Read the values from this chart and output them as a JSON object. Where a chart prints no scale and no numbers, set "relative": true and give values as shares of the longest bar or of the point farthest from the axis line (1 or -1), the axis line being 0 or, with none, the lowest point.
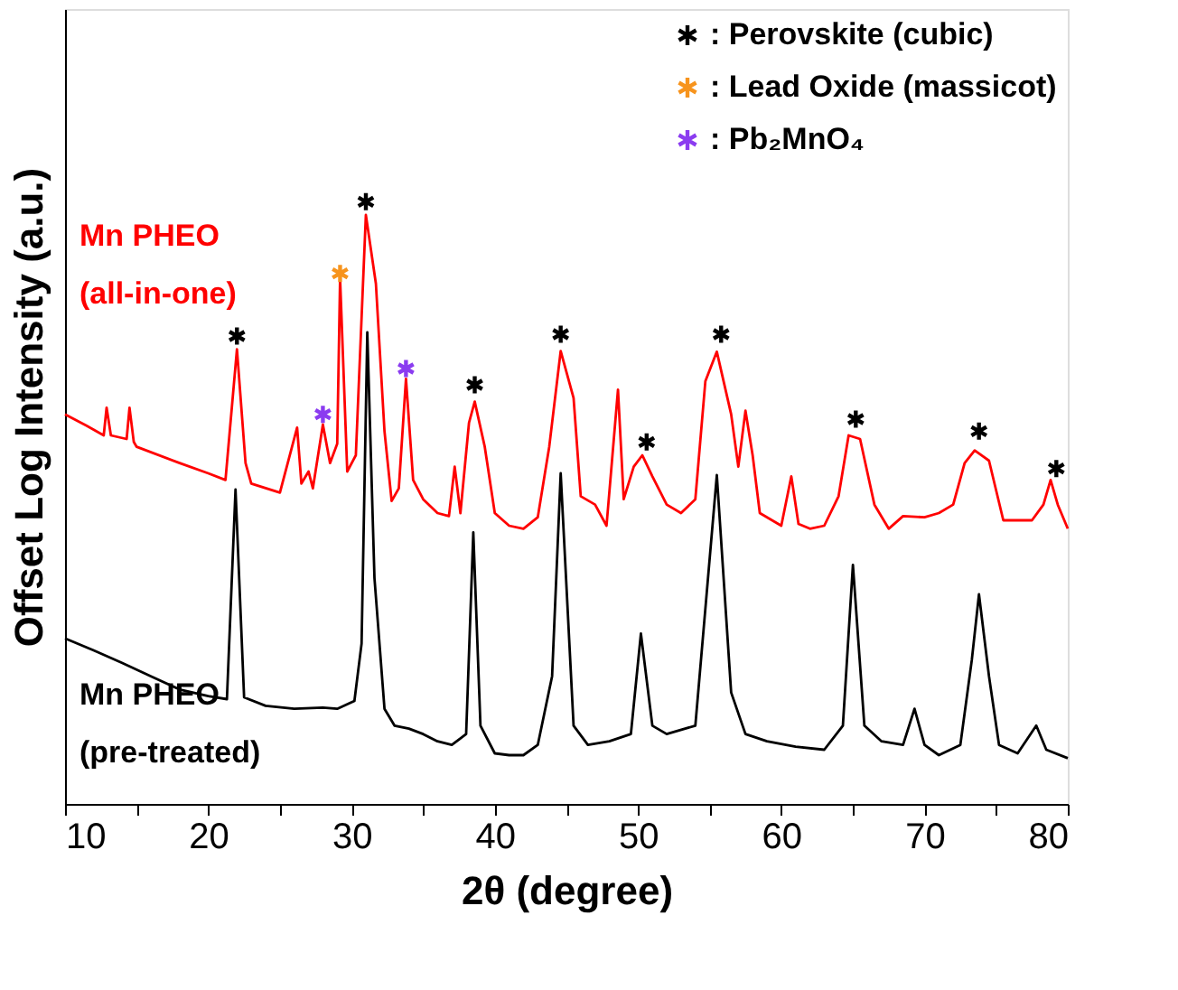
{
  "chart_data": {
    "type": "line",
    "relative": true,
    "xlabel": "2θ (degree)",
    "ylabel": "Offset Log Intensity (a.u.)",
    "xlim": [
      10,
      80
    ],
    "xticks": [
      10,
      {
        "value": 15,
        "label": null
      },
      20,
      {
        "value": 25,
        "label": null
      },
      30,
      {
        "value": 35,
        "label": null
      },
      40,
      {
        "value": 45,
        "label": null
      },
      50,
      {
        "value": 55,
        "label": null
      },
      60,
      {
        "value": 65,
        "label": null
      },
      70,
      {
        "value": 75,
        "label": null
      },
      80
    ],
    "grid": false,
    "legend": "top right",
    "series": [
      {
        "name": "Mn PHEO\n(all-in-one)",
        "color": "#ff0000",
        "x": [
          10,
          11.5,
          12.7,
          12.9,
          13.2,
          14.3,
          14.5,
          14.8,
          15,
          18,
          20,
          21.2,
          22,
          22.6,
          23,
          25,
          26.2,
          26.5,
          27,
          27.3,
          28,
          28.5,
          29,
          29.2,
          29.7,
          30.3,
          31,
          31.7,
          32.3,
          32.8,
          33.3,
          33.8,
          34.3,
          35,
          36,
          36.8,
          37.2,
          37.6,
          38.2,
          38.6,
          39.3,
          40,
          41,
          42,
          43,
          43.8,
          44.6,
          45.5,
          46,
          47,
          47.8,
          48.6,
          49,
          49.7,
          50.3,
          51,
          52,
          53,
          54,
          54.7,
          55.5,
          56.5,
          57,
          57.5,
          58,
          58.5,
          60,
          60.7,
          61.2,
          62,
          63,
          64,
          64.7,
          65.5,
          66.5,
          67.5,
          68.5,
          70,
          71,
          72,
          72.8,
          73.5,
          74.5,
          75.5,
          76.5,
          77.5,
          78.3,
          78.8,
          79.3,
          80
        ],
        "values": [
          0.647,
          0.628,
          0.612,
          0.658,
          0.612,
          0.606,
          0.658,
          0.601,
          0.593,
          0.566,
          0.549,
          0.538,
          0.755,
          0.566,
          0.532,
          0.517,
          0.625,
          0.532,
          0.552,
          0.524,
          0.63,
          0.566,
          0.598,
          0.873,
          0.552,
          0.579,
          0.978,
          0.864,
          0.619,
          0.503,
          0.524,
          0.706,
          0.538,
          0.506,
          0.483,
          0.478,
          0.56,
          0.483,
          0.633,
          0.668,
          0.593,
          0.483,
          0.462,
          0.457,
          0.476,
          0.593,
          0.752,
          0.674,
          0.511,
          0.497,
          0.462,
          0.688,
          0.506,
          0.56,
          0.579,
          0.544,
          0.497,
          0.483,
          0.506,
          0.702,
          0.751,
          0.647,
          0.56,
          0.653,
          0.579,
          0.483,
          0.462,
          0.544,
          0.465,
          0.457,
          0.462,
          0.511,
          0.612,
          0.606,
          0.497,
          0.457,
          0.478,
          0.476,
          0.483,
          0.497,
          0.566,
          0.587,
          0.57,
          0.471,
          0.471,
          0.471,
          0.497,
          0.538,
          0.497,
          0.457
        ]
      },
      {
        "name": "Mn PHEO\n(pre-treated)",
        "color": "#000000",
        "x": [
          10,
          12,
          14,
          16,
          18,
          20,
          21.3,
          21.9,
          22.5,
          24,
          26,
          28,
          29,
          30.2,
          30.7,
          31.1,
          31.6,
          32.3,
          33,
          34,
          35,
          36,
          37,
          38,
          38.5,
          39,
          40,
          41,
          42,
          43,
          44,
          44.6,
          45.5,
          46.5,
          48,
          49.5,
          50.2,
          51,
          52,
          54,
          55.5,
          56.5,
          57.5,
          59,
          61,
          63,
          64.3,
          65,
          65.8,
          67,
          68.5,
          69.3,
          70,
          71,
          72.5,
          73.3,
          73.8,
          74.5,
          75.2,
          76.5,
          77.8,
          78.5,
          80
        ],
        "values": [
          0.275,
          0.255,
          0.234,
          0.212,
          0.19,
          0.179,
          0.174,
          0.522,
          0.177,
          0.163,
          0.158,
          0.16,
          0.158,
          0.171,
          0.266,
          0.783,
          0.375,
          0.158,
          0.13,
          0.125,
          0.116,
          0.104,
          0.098,
          0.116,
          0.451,
          0.13,
          0.084,
          0.081,
          0.081,
          0.098,
          0.212,
          0.549,
          0.13,
          0.098,
          0.104,
          0.116,
          0.283,
          0.13,
          0.116,
          0.13,
          0.546,
          0.185,
          0.116,
          0.104,
          0.095,
          0.09,
          0.13,
          0.397,
          0.13,
          0.104,
          0.098,
          0.158,
          0.098,
          0.081,
          0.098,
          0.239,
          0.348,
          0.212,
          0.098,
          0.084,
          0.13,
          0.09,
          0.076
        ]
      },
      {
        "name": ": Perovskite (cubic)",
        "type": "scatter",
        "marker": "cross",
        "color": "#000000",
        "x": [
          22,
          31,
          38.6,
          44.6,
          50.6,
          55.8,
          65.2,
          73.8,
          79.2
        ],
        "values": [
          0.777,
          1.0,
          0.696,
          0.78,
          0.601,
          0.78,
          0.639,
          0.619,
          0.557
        ]
      },
      {
        "name": ": Lead Oxide (massicot)",
        "type": "scatter",
        "marker": "cross",
        "color": "#f7941d",
        "x": [
          29.2
        ],
        "values": [
          0.881
        ]
      },
      {
        "name": ": Pb₂MnO₄",
        "type": "scatter",
        "marker": "cross",
        "color": "#8b3cf0",
        "x": [
          28,
          33.8
        ],
        "values": [
          0.647,
          0.723
        ]
      }
    ]
  }
}
